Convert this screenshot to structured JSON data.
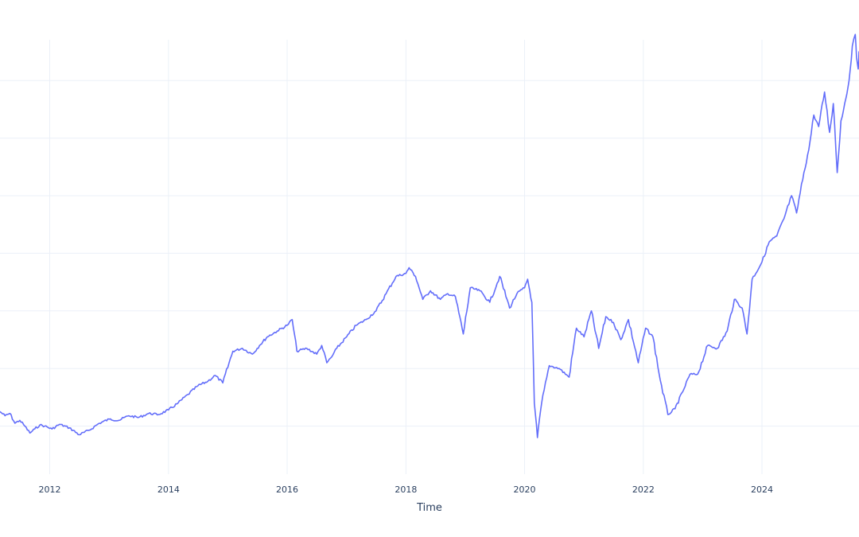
{
  "chart_data": {
    "type": "line",
    "title": "",
    "xlabel": "Time",
    "ylabel": "",
    "x_tick_labels": [
      "2012",
      "2014",
      "2016",
      "2018",
      "2020",
      "2022",
      "2024"
    ],
    "xlim": [
      "2011-03-01",
      "2025-08-20"
    ],
    "ylim": [
      0,
      7.8
    ],
    "grid": true,
    "legend": "none",
    "colors": {
      "line": "#636efa",
      "grid": "#ebf0f8",
      "text": "#2a3f5f",
      "background": "#ffffff"
    },
    "series": [
      {
        "x": [
          "2011-03-01",
          "2011-04-01",
          "2011-05-01",
          "2011-06-01",
          "2011-07-01",
          "2011-08-01",
          "2011-09-01",
          "2011-10-01",
          "2011-11-01",
          "2011-12-01",
          "2012-01-15",
          "2012-03-01",
          "2012-05-01",
          "2012-07-01",
          "2012-09-01",
          "2012-11-01",
          "2013-01-01",
          "2013-03-01",
          "2013-05-01",
          "2013-07-01",
          "2013-09-01",
          "2013-11-01",
          "2014-01-01",
          "2014-03-01",
          "2014-05-01",
          "2014-07-01",
          "2014-09-01",
          "2014-10-15",
          "2014-12-01",
          "2015-02-01",
          "2015-04-01",
          "2015-06-01",
          "2015-07-15",
          "2015-09-01",
          "2015-11-01",
          "2016-01-01",
          "2016-02-01",
          "2016-03-01",
          "2016-05-01",
          "2016-07-01",
          "2016-08-01",
          "2016-09-01",
          "2016-10-01",
          "2016-11-01",
          "2017-01-01",
          "2017-03-01",
          "2017-05-01",
          "2017-07-01",
          "2017-09-01",
          "2017-11-01",
          "2018-01-01",
          "2018-01-20",
          "2018-03-01",
          "2018-04-15",
          "2018-06-01",
          "2018-08-01",
          "2018-09-15",
          "2018-11-01",
          "2018-12-20",
          "2019-02-01",
          "2019-04-01",
          "2019-06-01",
          "2019-08-01",
          "2019-10-01",
          "2019-11-15",
          "2020-01-01",
          "2020-01-20",
          "2020-02-15",
          "2020-03-01",
          "2020-03-20",
          "2020-04-15",
          "2020-06-01",
          "2020-08-01",
          "2020-10-01",
          "2020-11-15",
          "2021-01-01",
          "2021-02-15",
          "2021-04-01",
          "2021-05-15",
          "2021-07-01",
          "2021-08-15",
          "2021-10-01",
          "2021-12-01",
          "2022-01-15",
          "2022-03-01",
          "2022-04-15",
          "2022-06-01",
          "2022-07-15",
          "2022-09-01",
          "2022-10-15",
          "2022-12-01",
          "2023-02-01",
          "2023-04-01",
          "2023-06-01",
          "2023-07-15",
          "2023-09-01",
          "2023-10-01",
          "2023-11-01",
          "2024-01-01",
          "2024-02-15",
          "2024-04-01",
          "2024-05-15",
          "2024-07-01",
          "2024-08-01",
          "2024-09-15",
          "2024-10-15",
          "2024-11-15",
          "2024-12-15",
          "2025-01-20",
          "2025-02-20",
          "2025-03-15",
          "2025-04-08",
          "2025-05-01",
          "2025-06-01",
          "2025-06-20",
          "2025-07-10",
          "2025-07-28",
          "2025-08-05",
          "2025-08-15",
          "2025-08-20"
        ],
        "y": [
          1.25,
          1.18,
          1.22,
          1.05,
          1.1,
          1.0,
          0.88,
          0.95,
          1.02,
          1.0,
          0.95,
          1.03,
          0.97,
          0.85,
          0.93,
          1.05,
          1.12,
          1.1,
          1.18,
          1.15,
          1.22,
          1.2,
          1.28,
          1.4,
          1.55,
          1.7,
          1.78,
          1.88,
          1.75,
          2.3,
          2.35,
          2.25,
          2.4,
          2.55,
          2.65,
          2.75,
          2.85,
          2.3,
          2.35,
          2.25,
          2.4,
          2.1,
          2.2,
          2.35,
          2.55,
          2.75,
          2.85,
          3.0,
          3.3,
          3.6,
          3.65,
          3.75,
          3.6,
          3.2,
          3.35,
          3.2,
          3.3,
          3.25,
          2.6,
          3.4,
          3.35,
          3.15,
          3.6,
          3.05,
          3.3,
          3.4,
          3.55,
          3.15,
          1.4,
          0.8,
          1.4,
          2.05,
          2.0,
          1.85,
          2.7,
          2.55,
          3.0,
          2.35,
          2.9,
          2.8,
          2.5,
          2.85,
          2.1,
          2.7,
          2.55,
          1.8,
          1.2,
          1.3,
          1.6,
          1.9,
          1.9,
          2.4,
          2.35,
          2.65,
          3.2,
          3.05,
          2.6,
          3.55,
          3.85,
          4.2,
          4.3,
          4.6,
          5.0,
          4.7,
          5.4,
          5.8,
          6.4,
          6.2,
          6.8,
          6.1,
          6.6,
          5.4,
          6.3,
          6.7,
          7.0,
          7.6,
          7.8,
          7.4,
          7.2,
          7.5
        ]
      }
    ]
  }
}
